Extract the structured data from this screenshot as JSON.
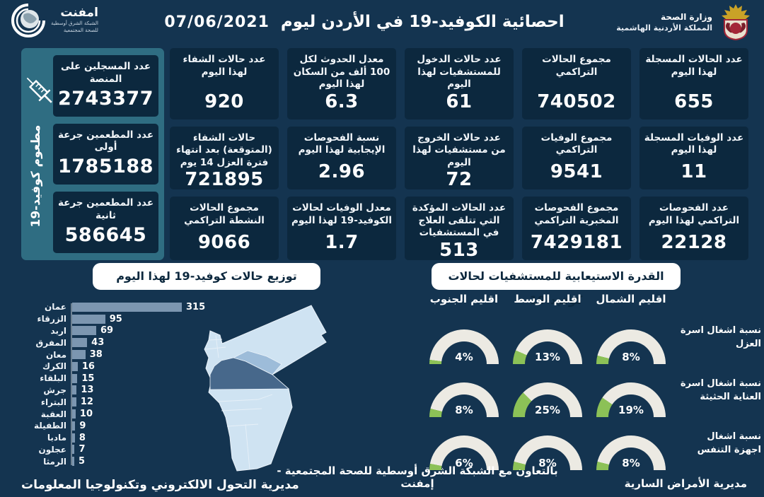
{
  "header": {
    "title": "احصائية الكوفيد-19 في الأردن ليوم",
    "date": "07/06/2021",
    "ministry_line1": "وزارة الصحة",
    "ministry_line2": "المملكة الأردنية الهاشمية",
    "emphnet_name": "امفنت",
    "emphnet_line1": "الشبكة الشرق أوسطية",
    "emphnet_line2": "للصحة المجتمعية"
  },
  "vaccination": {
    "side_label": "مطعوم كوفيد-19",
    "boxes": [
      {
        "label": "عدد المسجلين على المنصة",
        "value": "2743377"
      },
      {
        "label": "عدد المطعمين جرعة أولى",
        "value": "1785188"
      },
      {
        "label": "عدد المطعمين جرعة ثانية",
        "value": "586645"
      }
    ]
  },
  "stats": [
    {
      "label": "عدد حالات الشفاء لهذا اليوم",
      "value": "920"
    },
    {
      "label": "معدل الحدوث لكل 100 ألف من السكان لهذا اليوم",
      "value": "6.3"
    },
    {
      "label": "عدد حالات الدخول للمستشفيات لهذا اليوم",
      "value": "61"
    },
    {
      "label": "مجموع الحالات التراكمي",
      "value": "740502"
    },
    {
      "label": "عدد الحالات المسجلة لهذا اليوم",
      "value": "655"
    },
    {
      "label": "حالات الشفاء (المتوقعة) بعد انتهاء فترة العزل 14 يوم",
      "value": "721895"
    },
    {
      "label": "نسبة الفحوصات الإيجابية لهذا اليوم",
      "value": "2.96"
    },
    {
      "label": "عدد حالات الخروج من مستشفيات لهذا اليوم",
      "value": "72"
    },
    {
      "label": "مجموع الوفيات التراكمي",
      "value": "9541"
    },
    {
      "label": "عدد الوفيات المسجلة لهذا اليوم",
      "value": "11"
    },
    {
      "label": "مجموع الحالات النشطة التراكمي",
      "value": "9066"
    },
    {
      "label": "معدل الوفيات لحالات الكوفيد-19 لهذا اليوم",
      "value": "1.7"
    },
    {
      "label": "عدد الحالات المؤكدة التي تتلقى العلاج في المستشفيات",
      "value": "513"
    },
    {
      "label": "مجموع الفحوصات المخبرية التراكمي",
      "value": "7429181"
    },
    {
      "label": "عدد الفحوصات التراكمي لهذا اليوم",
      "value": "22128"
    }
  ],
  "chart_data": [
    {
      "type": "bar",
      "orientation": "horizontal",
      "title": "توزيع حالات كوفيد-19 لهذا اليوم",
      "categories": [
        "عمان",
        "الزرقاء",
        "اربد",
        "المفرق",
        "معان",
        "الكرك",
        "البلقاء",
        "جرش",
        "البتراء",
        "العقبة",
        "الطفيلة",
        "مادبا",
        "عجلون",
        "الرمثا"
      ],
      "values": [
        315,
        95,
        69,
        43,
        38,
        16,
        15,
        13,
        12,
        10,
        9,
        8,
        7,
        5
      ],
      "xlim": [
        0,
        315
      ],
      "bar_color": "#7c96b0"
    },
    {
      "type": "gauge",
      "title": "القدرة الاستيعابية للمستشفيات لحالات كوفيد-19",
      "columns": [
        "اقليم الجنوب",
        "اقليم الوسط",
        "اقليم الشمال"
      ],
      "rows": [
        {
          "label": "نسبة اشغال اسرة العزل",
          "values": [
            4,
            13,
            8
          ]
        },
        {
          "label": "نسبة اشغال اسرة العناية الحثيثة",
          "values": [
            8,
            25,
            19
          ]
        },
        {
          "label": "نسبة اشغال اجهزة التنفس",
          "values": [
            6,
            8,
            8
          ]
        }
      ],
      "unit": "%",
      "range": [
        0,
        100
      ],
      "fill_color": "#8cc157",
      "track_color": "#eceae3"
    }
  ],
  "map": {
    "country": "الأردن",
    "base_color": "#cfe3f2",
    "highlighted_regions": [
      {
        "name": "عمان",
        "color": "#47688b"
      },
      {
        "name": "الزرقاء",
        "color": "#9dbcd9"
      }
    ]
  },
  "footer": {
    "left": "مديرية التحول الالكتروني وتكنولوجيا المعلومات",
    "center": "بالتعاون مع الشبكة الشرق أوسطية للصحة المجتمعية - إمفنت",
    "right": "مديرية الأمراض السارية"
  },
  "colors": {
    "background": "#143450",
    "box": "#0c283e",
    "sidebar": "#2f6d82",
    "banner_bg": "#ffffff",
    "banner_text": "#0c283e"
  }
}
